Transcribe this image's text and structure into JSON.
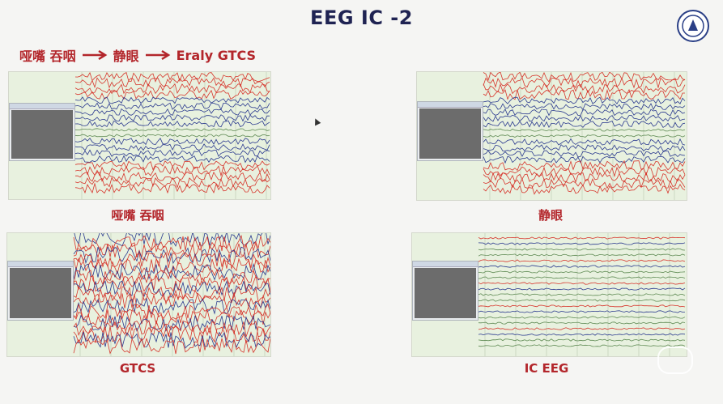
{
  "slide": {
    "title": "EEG IC -2",
    "sequence": [
      "哑嘴 吞咽",
      "静眼",
      "Eraly GTCS"
    ],
    "icons": {
      "logo": "university-emblem-icon",
      "arrow": "right-arrow-icon",
      "cursor": "mouse-cursor-icon",
      "watermark": "watermark-logo-icon"
    }
  },
  "panels": [
    {
      "caption": "哑嘴 吞咽",
      "kind": "red-blue-dense"
    },
    {
      "caption": "静眼",
      "kind": "red-blue-bands"
    },
    {
      "caption": "GTCS",
      "kind": "chaotic"
    },
    {
      "caption": "IC EEG",
      "kind": "quiet"
    }
  ],
  "colors": {
    "title": "#1f2352",
    "caption": "#b3262b",
    "trace_red": "#d7352c",
    "trace_blue": "#2b3a8f",
    "trace_green": "#5f8b54",
    "grid_bg": "#e8f1df"
  }
}
